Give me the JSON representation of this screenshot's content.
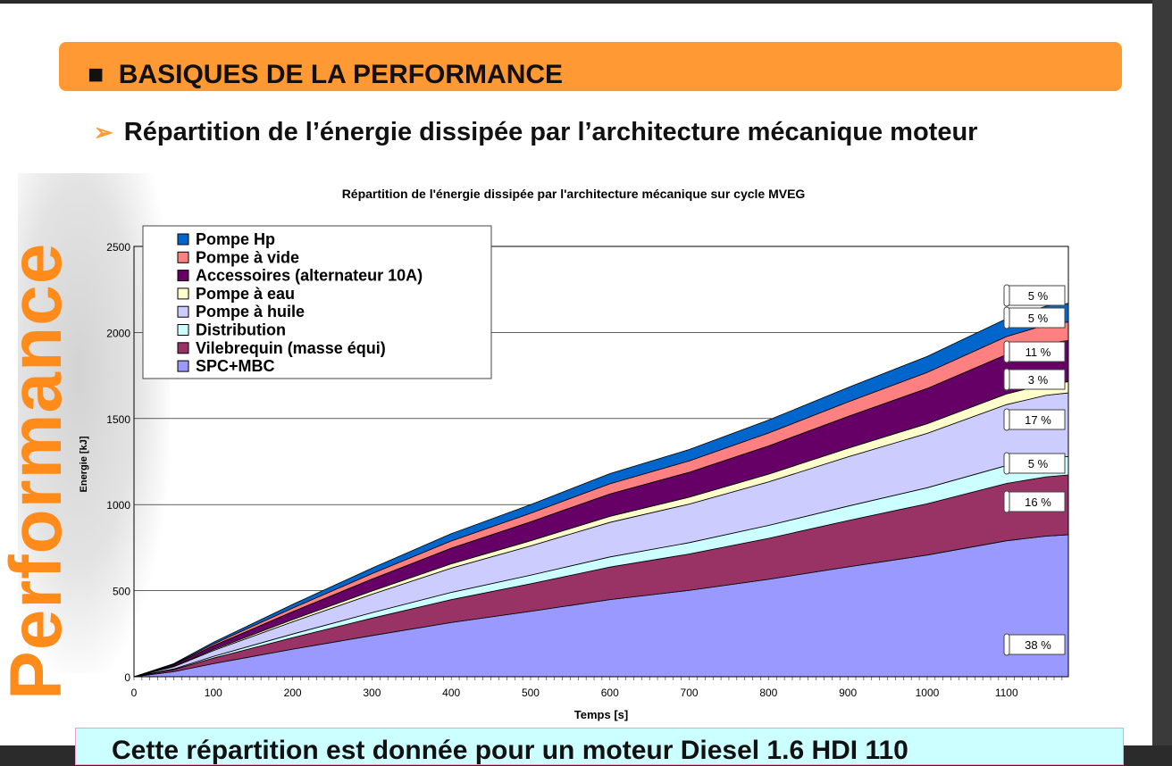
{
  "slide": {
    "header_title": "BASIQUES DE LA PERFORMANCE",
    "header_bullet": "■",
    "subtitle_arrow": "➢",
    "subtitle": "Répartition de l’énergie dissipée par l’architecture mécanique moteur",
    "side_watermark": "Performance",
    "bottom_text": "Cette répartition est donnée pour un moteur Diesel 1.6 HDI 110"
  },
  "chart_data": {
    "type": "area",
    "stacked": true,
    "title": "Répartition de l'énergie dissipée par l'architecture mécanique sur cycle MVEG",
    "xlabel": "Temps [s]",
    "ylabel": "Energie [kJ]",
    "xlim": [
      0,
      1178
    ],
    "ylim": [
      0,
      2500
    ],
    "x_ticks": [
      "0",
      "100",
      "200",
      "300",
      "400",
      "500",
      "600",
      "700",
      "800",
      "900",
      "1000",
      "1100"
    ],
    "y_ticks": [
      "0",
      "500",
      "1000",
      "1500",
      "2000",
      "2500"
    ],
    "grid": "horizontal",
    "legend_position": "top-left",
    "x": [
      0,
      50,
      100,
      200,
      300,
      400,
      500,
      600,
      700,
      800,
      900,
      1000,
      1100,
      1150,
      1178
    ],
    "series": [
      {
        "name": "SPC+MBC",
        "color": "#9999FF",
        "share_label": "38 %",
        "values": [
          0,
          29,
          76,
          160,
          239,
          315,
          380,
          448,
          502,
          566,
          638,
          707,
          790,
          817,
          825
        ]
      },
      {
        "name": "Vilebrequin (masse équi)",
        "color": "#993366",
        "share_label": "16 %",
        "values": [
          0,
          12,
          32,
          67,
          101,
          133,
          160,
          189,
          211,
          238,
          269,
          298,
          333,
          344,
          347
        ]
      },
      {
        "name": "Distribution",
        "color": "#CCFFFF",
        "share_label": "5 %",
        "values": [
          0,
          4,
          10,
          21,
          32,
          42,
          50,
          59,
          66,
          75,
          84,
          93,
          104,
          108,
          108
        ]
      },
      {
        "name": "Pompe à huile",
        "color": "#CCCCFF",
        "share_label": "17 %",
        "values": [
          0,
          13,
          34,
          71,
          107,
          141,
          170,
          201,
          224,
          253,
          286,
          316,
          354,
          366,
          369
        ]
      },
      {
        "name": "Pompe à eau",
        "color": "#FFFFCC",
        "share_label": "3 %",
        "values": [
          0,
          2,
          6,
          13,
          19,
          25,
          30,
          35,
          40,
          45,
          50,
          56,
          62,
          65,
          65
        ]
      },
      {
        "name": "Accessoires (alternateur 10A)",
        "color": "#660066",
        "share_label": "11 %",
        "values": [
          0,
          8,
          22,
          46,
          69,
          91,
          110,
          130,
          145,
          164,
          185,
          205,
          229,
          237,
          239
        ]
      },
      {
        "name": "Pompe à vide",
        "color": "#FF8080",
        "share_label": "5 %",
        "values": [
          0,
          4,
          10,
          21,
          32,
          42,
          50,
          59,
          66,
          75,
          84,
          93,
          104,
          108,
          108
        ]
      },
      {
        "name": "Pompe Hp",
        "color": "#0066CC",
        "share_label": "5 %",
        "values": [
          0,
          4,
          10,
          21,
          32,
          42,
          50,
          59,
          66,
          75,
          84,
          93,
          104,
          108,
          108
        ]
      }
    ]
  }
}
